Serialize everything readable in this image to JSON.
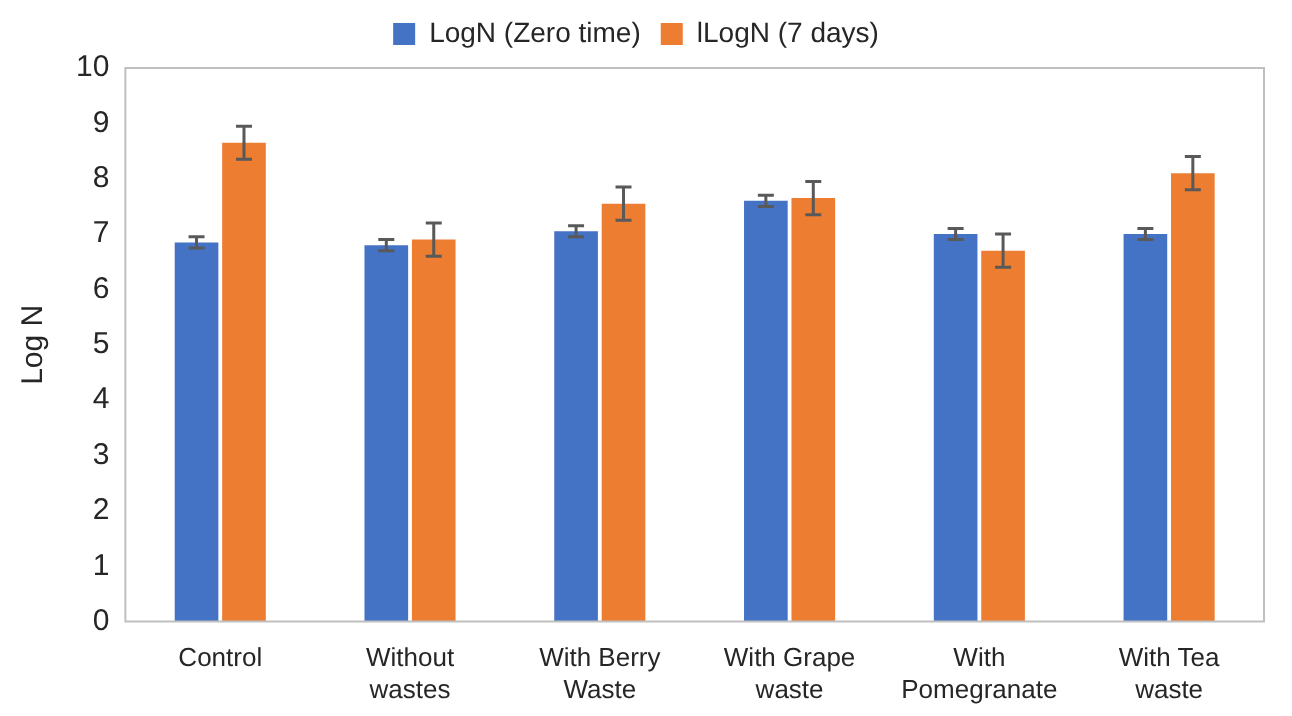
{
  "chart_data": {
    "type": "bar",
    "ylabel": "Log N",
    "categories": [
      "Control",
      "Without wastes",
      "With Berry Waste",
      "With Grape waste",
      "With Pomegranate",
      "With Tea waste"
    ],
    "series": [
      {
        "name": "LogN (Zero time)",
        "color": "#4472c4",
        "values": [
          6.85,
          6.8,
          7.05,
          7.6,
          7.0,
          7.0
        ],
        "errors": [
          0.1,
          0.1,
          0.1,
          0.1,
          0.1,
          0.1
        ]
      },
      {
        "name": "lLogN (7 days)",
        "color": "#ed7d31",
        "values": [
          8.65,
          6.9,
          7.55,
          7.65,
          6.7,
          8.1
        ],
        "errors": [
          0.3,
          0.3,
          0.3,
          0.3,
          0.3,
          0.3
        ]
      }
    ],
    "ylim": [
      0,
      10
    ],
    "yticks": [
      0,
      1,
      2,
      3,
      4,
      5,
      6,
      7,
      8,
      9,
      10
    ],
    "grid": false,
    "legend": "top"
  }
}
